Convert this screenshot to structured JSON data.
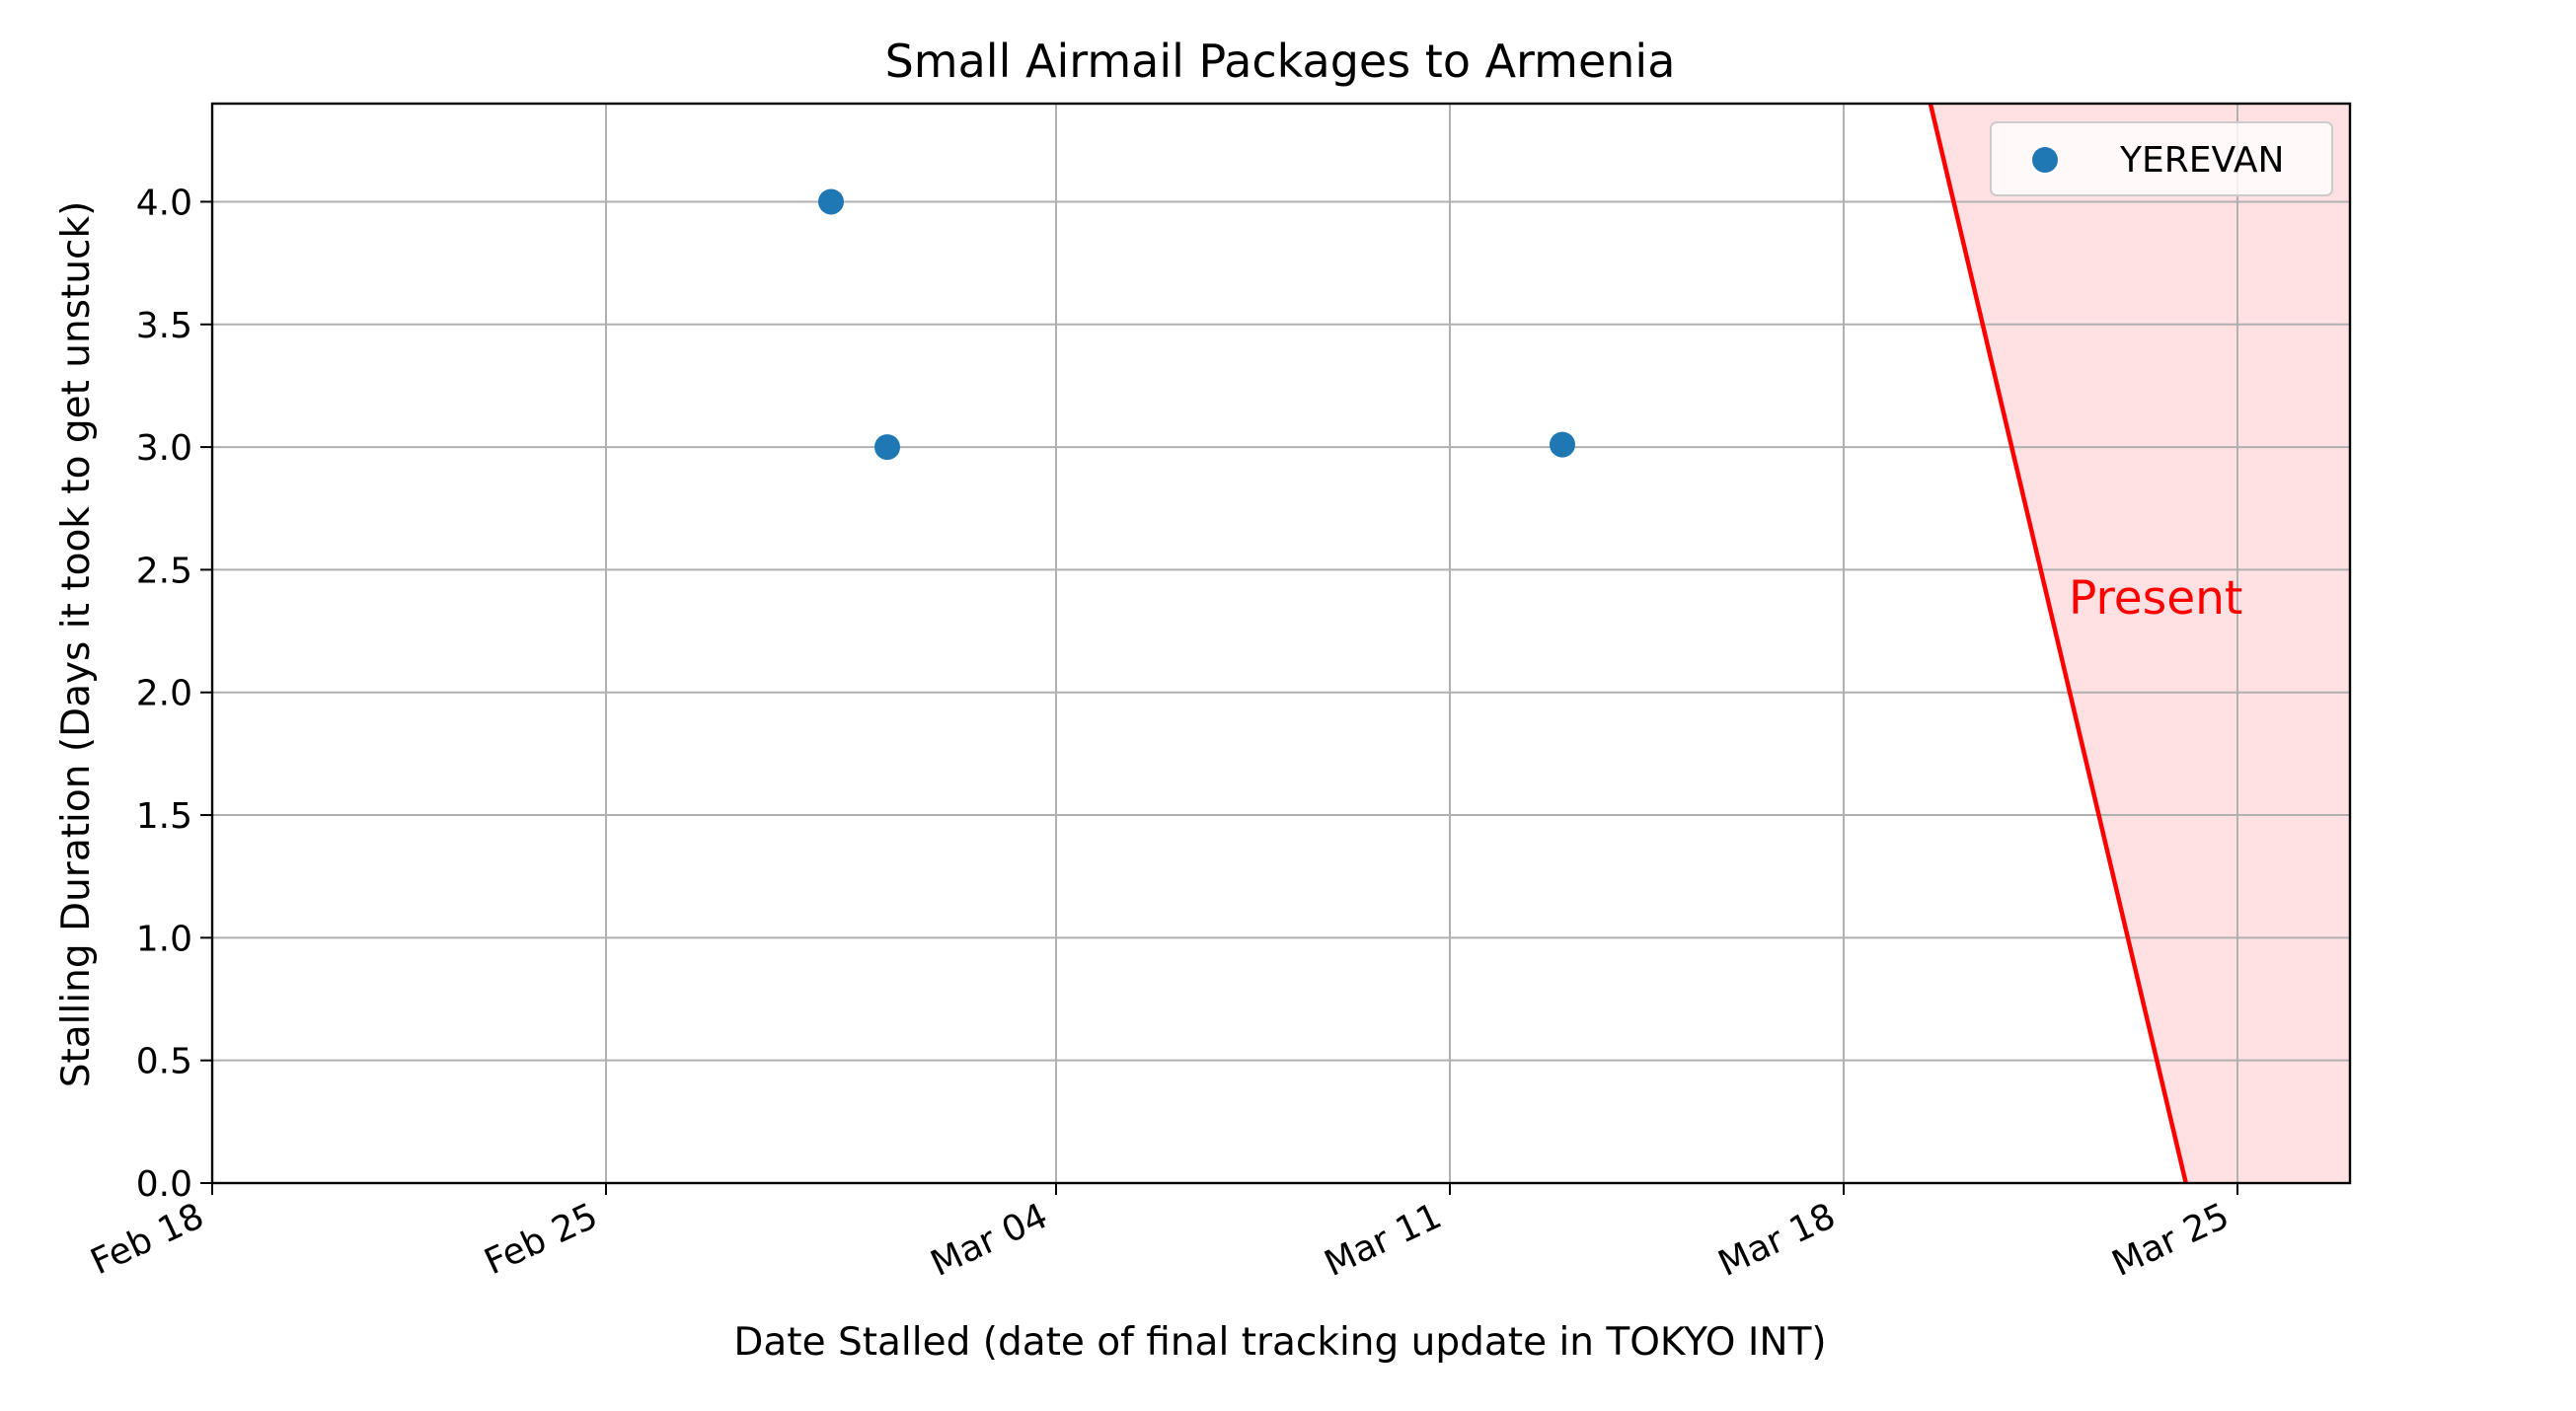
{
  "chart_data": {
    "type": "scatter",
    "title": "Small Airmail Packages to Armenia",
    "xlabel": "Date Stalled (date of final tracking update in TOKYO INT)",
    "ylabel": "Stalling Duration (Days it took to get unstuck)",
    "x_type": "date",
    "xlim": [
      "2024-02-18",
      "2024-03-27"
    ],
    "ylim": [
      0,
      4.4
    ],
    "x_ticks": [
      "2024-02-18",
      "2024-02-25",
      "2024-03-04",
      "2024-03-11",
      "2024-03-18",
      "2024-03-25"
    ],
    "x_tick_labels": [
      "Feb 18",
      "Feb 25",
      "Mar 04",
      "Mar 11",
      "Mar 18",
      "Mar 25"
    ],
    "y_ticks": [
      0.0,
      0.5,
      1.0,
      1.5,
      2.0,
      2.5,
      3.0,
      3.5,
      4.0
    ],
    "y_tick_labels": [
      "0.0",
      "0.5",
      "1.0",
      "1.5",
      "2.0",
      "2.5",
      "3.0",
      "3.5",
      "4.0"
    ],
    "grid": true,
    "legend_position": "top-right",
    "series": [
      {
        "name": "YEREVAN",
        "color": "#1f77b4",
        "points": [
          {
            "x": "2024-02-29",
            "y": 4.0
          },
          {
            "x": "2024-03-01",
            "y": 3.0
          },
          {
            "x": "2024-03-13",
            "y": 3.01
          }
        ]
      }
    ],
    "present_marker": {
      "label": "Present",
      "color": "#ff0000",
      "fill": "#ffe0e3",
      "line_top": {
        "x": "2024-03-19 13:00",
        "y": 4.4
      },
      "line_bottom": {
        "x": "2024-03-24 02:00",
        "y": 0.0
      },
      "label_anchor": {
        "x": "2024-03-22",
        "y": 2.32
      }
    }
  }
}
